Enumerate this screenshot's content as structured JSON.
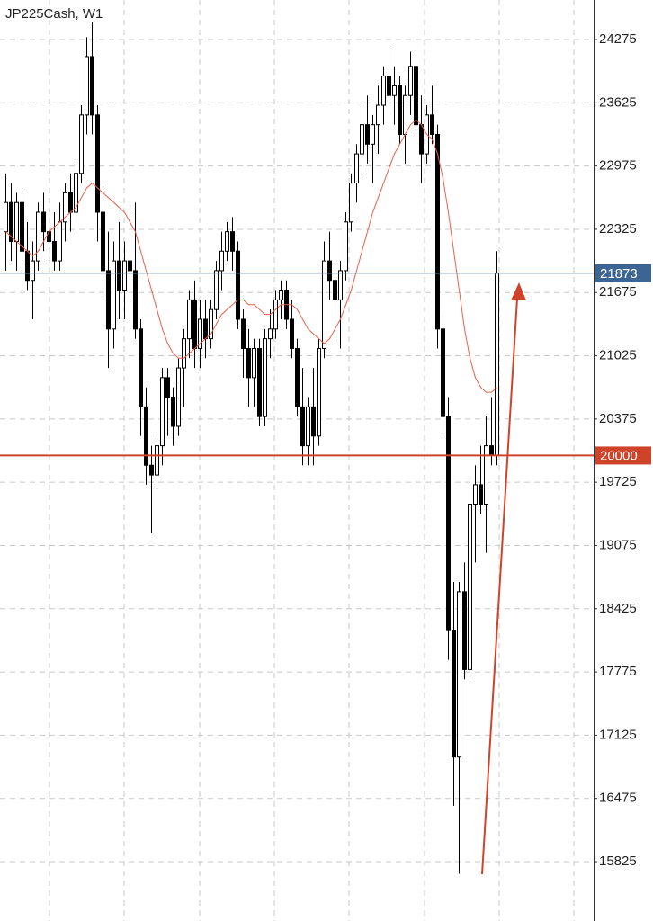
{
  "chart_data": {
    "type": "candlestick",
    "title": "JP225Cash, W1",
    "ylim": [
      15215,
      24682
    ],
    "yticks": [
      24275,
      23625,
      22975,
      22325,
      21675,
      21025,
      20375,
      19725,
      19075,
      18425,
      17775,
      17125,
      16475,
      15825
    ],
    "grid": true,
    "up_color": "#ffffff",
    "down_color": "#000000",
    "ma_color": "#e8604a",
    "ohlc": [
      [
        22300,
        22900,
        21900,
        22600
      ],
      [
        22600,
        22800,
        22000,
        22200
      ],
      [
        22200,
        22700,
        21900,
        22600
      ],
      [
        22600,
        22750,
        22000,
        22100
      ],
      [
        22100,
        22400,
        21700,
        21800
      ],
      [
        21800,
        22200,
        21400,
        22000
      ],
      [
        22000,
        22600,
        21900,
        22500
      ],
      [
        22500,
        22700,
        22100,
        22300
      ],
      [
        22300,
        22500,
        22000,
        22200
      ],
      [
        22200,
        22500,
        21900,
        22000
      ],
      [
        22000,
        22600,
        21900,
        22400
      ],
      [
        22400,
        22800,
        22200,
        22700
      ],
      [
        22700,
        22900,
        22300,
        22500
      ],
      [
        22500,
        23000,
        22300,
        22900
      ],
      [
        22900,
        23600,
        22800,
        23500
      ],
      [
        23500,
        24300,
        23300,
        24100
      ],
      [
        24100,
        24450,
        23300,
        23500
      ],
      [
        23500,
        23600,
        22200,
        22500
      ],
      [
        22500,
        22800,
        21600,
        21900
      ],
      [
        21900,
        22300,
        20900,
        21300
      ],
      [
        21300,
        22200,
        21100,
        22000
      ],
      [
        22000,
        22400,
        21400,
        21700
      ],
      [
        21700,
        22200,
        21400,
        22000
      ],
      [
        22000,
        22500,
        21600,
        21900
      ],
      [
        21900,
        22600,
        21200,
        21300
      ],
      [
        21300,
        21400,
        20200,
        20500
      ],
      [
        20500,
        20700,
        19700,
        19900
      ],
      [
        19900,
        20100,
        19200,
        19800
      ],
      [
        19800,
        20200,
        19700,
        20100
      ],
      [
        20100,
        20900,
        19900,
        20800
      ],
      [
        20800,
        20900,
        20200,
        20600
      ],
      [
        20600,
        20700,
        20100,
        20300
      ],
      [
        20300,
        21000,
        20200,
        20900
      ],
      [
        20900,
        21300,
        20500,
        21200
      ],
      [
        21200,
        21700,
        21000,
        21600
      ],
      [
        21600,
        21800,
        20900,
        21100
      ],
      [
        21100,
        21600,
        20900,
        21400
      ],
      [
        21400,
        21600,
        21000,
        21200
      ],
      [
        21200,
        21600,
        21100,
        21500
      ],
      [
        21500,
        22000,
        21400,
        21900
      ],
      [
        21900,
        22300,
        21700,
        22100
      ],
      [
        22100,
        22400,
        22000,
        22300
      ],
      [
        22300,
        22450,
        21900,
        22100
      ],
      [
        22100,
        22200,
        21300,
        21400
      ],
      [
        21400,
        21500,
        20800,
        21100
      ],
      [
        21100,
        21300,
        20500,
        20800
      ],
      [
        20800,
        21200,
        20500,
        21100
      ],
      [
        21100,
        21200,
        20300,
        20400
      ],
      [
        20400,
        21300,
        20300,
        21200
      ],
      [
        21200,
        21500,
        21000,
        21300
      ],
      [
        21300,
        21700,
        21200,
        21600
      ],
      [
        21600,
        21800,
        21400,
        21700
      ],
      [
        21700,
        21800,
        21300,
        21400
      ],
      [
        21400,
        21600,
        21000,
        21100
      ],
      [
        21100,
        21200,
        20400,
        20500
      ],
      [
        20500,
        20900,
        19900,
        20100
      ],
      [
        20100,
        20600,
        19900,
        20500
      ],
      [
        20500,
        20900,
        19900,
        20200
      ],
      [
        20200,
        21200,
        20100,
        21100
      ],
      [
        21100,
        22200,
        21000,
        22000
      ],
      [
        22000,
        22300,
        21600,
        21800
      ],
      [
        21800,
        22000,
        21200,
        21600
      ],
      [
        21600,
        22000,
        21100,
        21900
      ],
      [
        21900,
        22500,
        21800,
        22400
      ],
      [
        22400,
        22900,
        22300,
        22800
      ],
      [
        22800,
        23200,
        22600,
        23100
      ],
      [
        23100,
        23600,
        22900,
        23400
      ],
      [
        23400,
        23700,
        23000,
        23200
      ],
      [
        23200,
        23500,
        22800,
        23400
      ],
      [
        23400,
        23800,
        23100,
        23600
      ],
      [
        23600,
        24000,
        23400,
        23900
      ],
      [
        23900,
        24200,
        23500,
        23700
      ],
      [
        23700,
        24000,
        23400,
        23800
      ],
      [
        23800,
        23900,
        23200,
        23300
      ],
      [
        23300,
        23800,
        23000,
        23700
      ],
      [
        23700,
        24150,
        23500,
        24000
      ],
      [
        24000,
        24100,
        23300,
        23400
      ],
      [
        23400,
        23700,
        22800,
        23100
      ],
      [
        23100,
        23600,
        23000,
        23500
      ],
      [
        23500,
        23800,
        23200,
        23300
      ],
      [
        23300,
        23400,
        21100,
        21300
      ],
      [
        21300,
        21500,
        20200,
        20400
      ],
      [
        20400,
        20600,
        17900,
        18200
      ],
      [
        18200,
        18700,
        16400,
        16900
      ],
      [
        16900,
        18700,
        15700,
        18600
      ],
      [
        18600,
        18900,
        17700,
        17800
      ],
      [
        17800,
        19800,
        17700,
        19500
      ],
      [
        19500,
        19900,
        18900,
        19700
      ],
      [
        19700,
        20100,
        19400,
        19500
      ],
      [
        19500,
        20400,
        19000,
        20100
      ],
      [
        20100,
        20600,
        19900,
        20000
      ],
      [
        20000,
        22100,
        19900,
        21873
      ]
    ],
    "ma": [
      22300,
      22250,
      22200,
      22150,
      22100,
      22050,
      22100,
      22200,
      22300,
      22350,
      22400,
      22450,
      22500,
      22550,
      22650,
      22750,
      22800,
      22750,
      22700,
      22650,
      22600,
      22550,
      22500,
      22400,
      22300,
      22100,
      21900,
      21700,
      21500,
      21300,
      21150,
      21050,
      21000,
      21000,
      21050,
      21100,
      21150,
      21200,
      21250,
      21350,
      21450,
      21500,
      21550,
      21600,
      21600,
      21550,
      21550,
      21500,
      21450,
      21450,
      21500,
      21550,
      21550,
      21550,
      21500,
      21400,
      21300,
      21250,
      21200,
      21150,
      21200,
      21300,
      21400,
      21550,
      21700,
      21900,
      22100,
      22300,
      22500,
      22650,
      22800,
      22950,
      23100,
      23200,
      23300,
      23400,
      23450,
      23400,
      23300,
      23250,
      23100,
      22850,
      22500,
      22100,
      21700,
      21300,
      21000,
      20800,
      20700,
      20650,
      20650,
      20700
    ],
    "price_lines": [
      {
        "value": 21873,
        "color": "#7a97a8",
        "label_color": "#3d6594"
      },
      {
        "value": 20000,
        "color": "#d0432b",
        "label_color": "#d0432b"
      }
    ]
  }
}
